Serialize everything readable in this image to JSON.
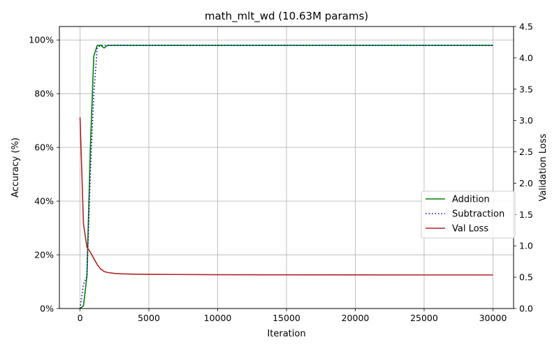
{
  "chart_data": {
    "type": "line",
    "title": "math_mlt_wd (10.63M params)",
    "xlabel": "Iteration",
    "ylabel": "Accuracy (%)",
    "y2label": "Validation Loss",
    "xlim": [
      -1500,
      31500
    ],
    "ylim": [
      0,
      105
    ],
    "y2lim": [
      0,
      4.5
    ],
    "xticks": [
      0,
      5000,
      10000,
      15000,
      20000,
      25000,
      30000
    ],
    "xtick_labels": [
      "0",
      "5000",
      "10000",
      "15000",
      "20000",
      "25000",
      "30000"
    ],
    "yticks": [
      0,
      20,
      40,
      60,
      80,
      100
    ],
    "ytick_labels": [
      "0%",
      "20%",
      "40%",
      "60%",
      "80%",
      "100%"
    ],
    "y2ticks": [
      0,
      0.5,
      1.0,
      1.5,
      2.0,
      2.5,
      3.0,
      3.5,
      4.0,
      4.5
    ],
    "y2tick_labels": [
      "0.0",
      "0.5",
      "1.0",
      "1.5",
      "2.0",
      "2.5",
      "3.0",
      "3.5",
      "4.0",
      "4.5"
    ],
    "grid": true,
    "legend_position": "center-right",
    "series": [
      {
        "name": "Addition",
        "axis": "left",
        "color": "#008000",
        "style": "solid",
        "x": [
          0,
          250,
          500,
          750,
          1000,
          1250,
          1500,
          1750,
          2000,
          3000,
          5000,
          10000,
          15000,
          20000,
          25000,
          30000
        ],
        "y": [
          0,
          1,
          12,
          60,
          94,
          98,
          98,
          97,
          98,
          98,
          98,
          98,
          98,
          98,
          98,
          98
        ]
      },
      {
        "name": "Subtraction",
        "axis": "left",
        "color": "#0000cd",
        "style": "dotted",
        "x": [
          0,
          250,
          500,
          750,
          1000,
          1250,
          1500,
          1750,
          2000,
          3000,
          5000,
          10000,
          15000,
          20000,
          25000,
          30000
        ],
        "y": [
          0,
          9,
          12,
          50,
          80,
          97,
          98,
          98,
          98,
          98,
          98,
          98,
          98,
          98,
          98,
          98
        ]
      },
      {
        "name": "Val Loss",
        "axis": "right",
        "color": "#b22222",
        "style": "solid",
        "x": [
          0,
          250,
          500,
          750,
          1000,
          1250,
          1500,
          1750,
          2000,
          2500,
          3000,
          4000,
          5000,
          10000,
          15000,
          20000,
          25000,
          30000
        ],
        "y": [
          3.05,
          1.35,
          0.98,
          0.9,
          0.8,
          0.7,
          0.63,
          0.59,
          0.575,
          0.56,
          0.553,
          0.548,
          0.545,
          0.54,
          0.538,
          0.537,
          0.536,
          0.536
        ]
      }
    ]
  }
}
